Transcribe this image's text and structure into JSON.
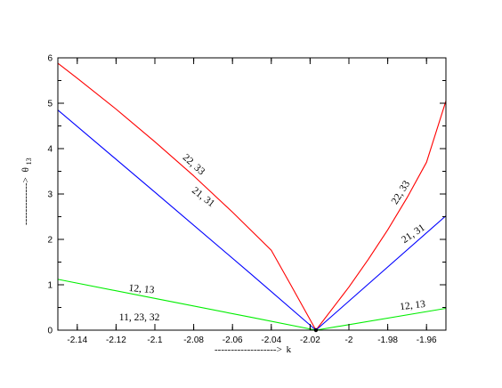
{
  "chart_data": {
    "type": "line",
    "xlabel": {
      "arrow": "------------------->",
      "text": "k"
    },
    "ylabel": {
      "arrow": "------------->",
      "text": "θ",
      "subscript": "13"
    },
    "xlim": [
      -2.15,
      -1.95
    ],
    "ylim": [
      0,
      6
    ],
    "grid": false,
    "x_ticks": [
      -2.14,
      -2.12,
      -2.1,
      -2.08,
      -2.06,
      -2.04,
      -2.02,
      -2,
      -1.98,
      -1.96
    ],
    "x_tick_labels": [
      "-2.14",
      "-2.12",
      "-2.1",
      "-2.08",
      "-2.06",
      "-2.04",
      "-2.02",
      "-2",
      "-1.98",
      "-1.96"
    ],
    "y_ticks": [
      0,
      1,
      2,
      3,
      4,
      5,
      6
    ],
    "y_tick_labels": [
      "0",
      "1",
      "2",
      "3",
      "4",
      "5",
      "6"
    ],
    "series": [
      {
        "color": "#ff0000",
        "x": [
          -2.15,
          -2.14,
          -2.12,
          -2.1,
          -2.08,
          -2.06,
          -2.04,
          -2.03,
          -2.017,
          -2.0,
          -1.99,
          -1.98,
          -1.97,
          -1.96,
          -1.95
        ],
        "y": [
          5.88,
          5.55,
          4.87,
          4.15,
          3.4,
          2.6,
          1.76,
          1.0,
          0.0,
          0.95,
          1.56,
          2.21,
          2.92,
          3.7,
          5.05
        ]
      },
      {
        "color": "#0000ff",
        "x": [
          -2.15,
          -2.1,
          -2.05,
          -2.017,
          -1.95
        ],
        "y": [
          4.85,
          3.04,
          1.22,
          0.0,
          2.52
        ]
      },
      {
        "color": "#00ee00",
        "x": [
          -2.15,
          -2.1,
          -2.05,
          -2.017,
          -1.95
        ],
        "y": [
          1.12,
          0.7,
          0.28,
          0.0,
          0.48
        ]
      },
      {
        "color": "#000000",
        "x": [
          -2.017
        ],
        "y": [
          0.0
        ],
        "marker": true
      }
    ],
    "annotations": [
      {
        "text": "22, 33",
        "x": -2.081,
        "y": 3.6,
        "rotation": 42
      },
      {
        "text": "21, 31",
        "x": -2.076,
        "y": 2.88,
        "rotation": 38
      },
      {
        "text": "12, 13",
        "x": -2.107,
        "y": 0.84,
        "rotation": 5
      },
      {
        "text": "11, 23, 32",
        "x": -2.108,
        "y": 0.22,
        "rotation": 0
      },
      {
        "text": "22, 33",
        "x": -1.972,
        "y": 3.0,
        "rotation": -58
      },
      {
        "text": "21, 31",
        "x": -1.966,
        "y": 2.07,
        "rotation": -34
      },
      {
        "text": "12, 13",
        "x": -1.967,
        "y": 0.48,
        "rotation": -7
      }
    ],
    "colors": {
      "frame": "#000000",
      "background": "#ffffff"
    }
  }
}
